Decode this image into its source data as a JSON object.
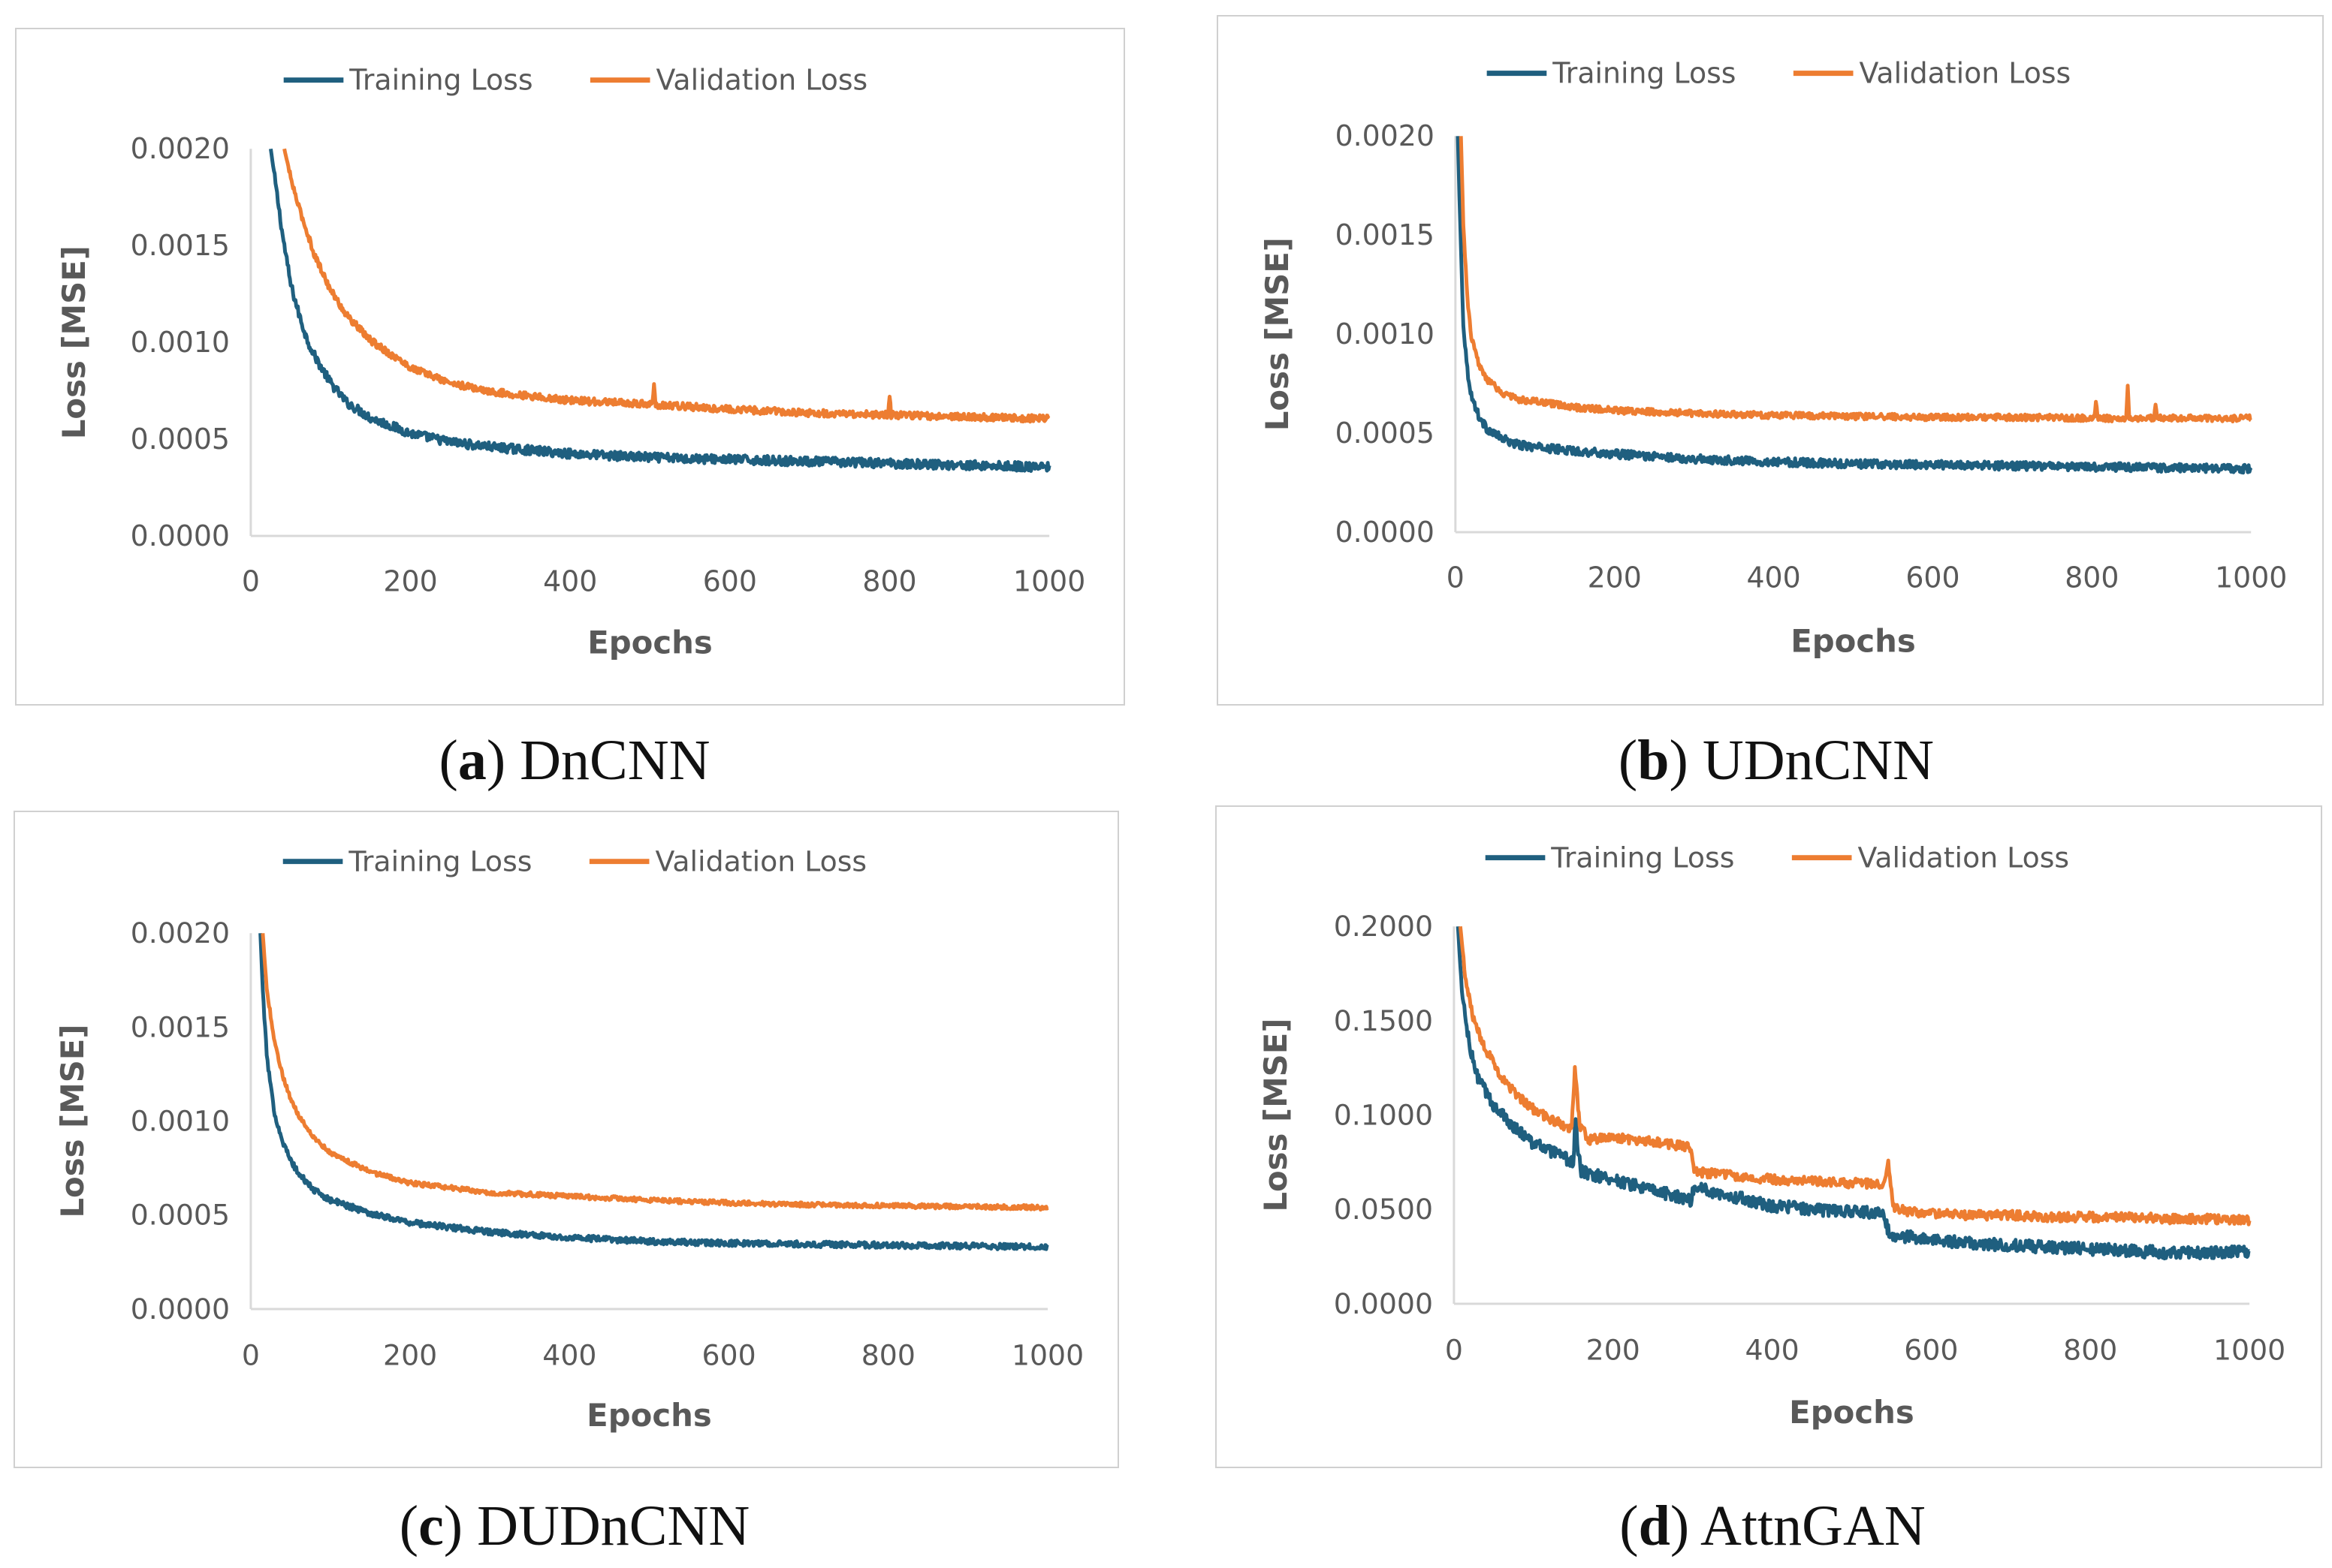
{
  "captions": [
    {
      "letter": "a",
      "name": "DnCNN"
    },
    {
      "letter": "b",
      "name": "UDnCNN"
    },
    {
      "letter": "c",
      "name": "DUDnCNN"
    },
    {
      "letter": "d",
      "name": "AttnGAN"
    }
  ],
  "colors": {
    "training": "#1f5f7f",
    "validation": "#ed7d31",
    "axis": "#d9d9d9",
    "text": "#595959"
  },
  "chart_data": [
    {
      "type": "line",
      "caption": "(a) DnCNN",
      "xlabel": "Epochs",
      "ylabel": "Loss [MSE]",
      "xlim": [
        0,
        1000
      ],
      "ylim": [
        0,
        0.002
      ],
      "xticks": [
        0,
        200,
        400,
        600,
        800,
        1000
      ],
      "xtick_labels": [
        "0",
        "200",
        "400",
        "600",
        "800",
        "1000"
      ],
      "yticks": [
        0,
        0.0005,
        0.001,
        0.0015,
        0.002
      ],
      "ytick_labels": [
        "0.0000",
        "0.0005",
        "0.0010",
        "0.0015",
        "0.0020"
      ],
      "legend_position": "top",
      "grid": false,
      "series": [
        {
          "name": "Training Loss",
          "x": [
            25,
            30,
            40,
            50,
            60,
            70,
            80,
            100,
            120,
            150,
            200,
            250,
            300,
            400,
            500,
            600,
            700,
            800,
            900,
            1000
          ],
          "y": [
            0.002,
            0.00185,
            0.00155,
            0.0013,
            0.00115,
            0.00102,
            0.00093,
            0.00079,
            0.00069,
            0.00061,
            0.00053,
            0.000485,
            0.00046,
            0.000425,
            0.000405,
            0.000395,
            0.000385,
            0.000375,
            0.000365,
            0.000355
          ]
        },
        {
          "name": "Validation Loss",
          "x": [
            42,
            50,
            60,
            80,
            100,
            120,
            150,
            200,
            250,
            300,
            400,
            500,
            600,
            700,
            800,
            900,
            1000
          ],
          "y": [
            0.002,
            0.00185,
            0.0017,
            0.00145,
            0.00127,
            0.00114,
            0.00101,
            0.00087,
            0.00079,
            0.000745,
            0.0007,
            0.00068,
            0.000655,
            0.000635,
            0.000625,
            0.000615,
            0.000605
          ]
        }
      ]
    },
    {
      "type": "line",
      "caption": "(b) UDnCNN",
      "xlabel": "Epochs",
      "ylabel": "Loss [MSE]",
      "xlim": [
        0,
        1000
      ],
      "ylim": [
        0,
        0.002
      ],
      "xticks": [
        0,
        200,
        400,
        600,
        800,
        1000
      ],
      "xtick_labels": [
        "0",
        "200",
        "400",
        "600",
        "800",
        "1000"
      ],
      "yticks": [
        0,
        0.0005,
        0.001,
        0.0015,
        0.002
      ],
      "ytick_labels": [
        "0.0000",
        "0.0005",
        "0.0010",
        "0.0015",
        "0.0020"
      ],
      "legend_position": "top",
      "grid": false,
      "series": [
        {
          "name": "Training Loss",
          "x": [
            3,
            5,
            8,
            10,
            15,
            20,
            30,
            40,
            60,
            80,
            100,
            150,
            200,
            300,
            400,
            500,
            600,
            700,
            800,
            900,
            1000
          ],
          "y": [
            0.002,
            0.0017,
            0.0013,
            0.00105,
            0.00082,
            0.00069,
            0.00058,
            0.00052,
            0.00047,
            0.00044,
            0.00043,
            0.00041,
            0.000395,
            0.00037,
            0.000355,
            0.000345,
            0.00034,
            0.000335,
            0.00033,
            0.000325,
            0.00032
          ]
        },
        {
          "name": "Validation Loss",
          "x": [
            7,
            10,
            15,
            20,
            30,
            40,
            60,
            80,
            100,
            150,
            200,
            300,
            400,
            500,
            600,
            700,
            800,
            900,
            1000
          ],
          "y": [
            0.002,
            0.00155,
            0.00118,
            0.00098,
            0.00084,
            0.00077,
            0.0007,
            0.00067,
            0.00066,
            0.00063,
            0.000615,
            0.0006,
            0.00059,
            0.000585,
            0.00058,
            0.00058,
            0.000575,
            0.000575,
            0.000575
          ]
        }
      ]
    },
    {
      "type": "line",
      "caption": "(c) DUDnCNN",
      "xlabel": "Epochs",
      "ylabel": "Loss [MSE]",
      "xlim": [
        0,
        1000
      ],
      "ylim": [
        0,
        0.002
      ],
      "xticks": [
        0,
        200,
        400,
        600,
        800,
        1000
      ],
      "xtick_labels": [
        "0",
        "200",
        "400",
        "600",
        "800",
        "1000"
      ],
      "yticks": [
        0,
        0.0005,
        0.001,
        0.0015,
        0.002
      ],
      "ytick_labels": [
        "0.0000",
        "0.0005",
        "0.0010",
        "0.0015",
        "0.0020"
      ],
      "legend_position": "top",
      "grid": false,
      "series": [
        {
          "name": "Training Loss",
          "x": [
            12,
            15,
            20,
            25,
            30,
            40,
            50,
            60,
            80,
            100,
            150,
            200,
            300,
            400,
            500,
            600,
            700,
            800,
            900,
            1000
          ],
          "y": [
            0.002,
            0.0017,
            0.00135,
            0.00118,
            0.00104,
            0.00089,
            0.00079,
            0.00072,
            0.00063,
            0.00058,
            0.00051,
            0.00046,
            0.00041,
            0.00038,
            0.00036,
            0.00035,
            0.000345,
            0.00034,
            0.000335,
            0.00033
          ]
        },
        {
          "name": "Validation Loss",
          "x": [
            15,
            20,
            30,
            40,
            50,
            60,
            80,
            100,
            150,
            200,
            300,
            400,
            500,
            600,
            700,
            800,
            900,
            1000
          ],
          "y": [
            0.002,
            0.0017,
            0.00142,
            0.00124,
            0.00112,
            0.00103,
            0.00091,
            0.00083,
            0.00073,
            0.00067,
            0.00062,
            0.0006,
            0.00058,
            0.000565,
            0.000555,
            0.00055,
            0.000545,
            0.00054
          ]
        }
      ]
    },
    {
      "type": "line",
      "caption": "(d) AttnGAN",
      "xlabel": "Epochs",
      "ylabel": "Loss [MSE]",
      "xlim": [
        0,
        1000
      ],
      "ylim": [
        0,
        0.2
      ],
      "xticks": [
        0,
        200,
        400,
        600,
        800,
        1000
      ],
      "xtick_labels": [
        "0",
        "200",
        "400",
        "600",
        "800",
        "1000"
      ],
      "yticks": [
        0,
        0.05,
        0.1,
        0.15,
        0.2
      ],
      "ytick_labels": [
        "0.0000",
        "0.0500",
        "0.1000",
        "0.1500",
        "0.2000"
      ],
      "legend_position": "top",
      "grid": false,
      "series": [
        {
          "name": "Training Loss",
          "x": [
            5,
            10,
            20,
            30,
            50,
            75,
            100,
            125,
            150,
            153,
            156,
            160,
            200,
            250,
            298,
            302,
            350,
            400,
            450,
            500,
            540,
            547,
            560,
            600,
            650,
            700,
            750,
            800,
            850,
            900,
            950,
            1000
          ],
          "y": [
            0.2,
            0.165,
            0.135,
            0.12,
            0.105,
            0.094,
            0.085,
            0.08,
            0.075,
            0.1,
            0.08,
            0.07,
            0.066,
            0.06,
            0.055,
            0.062,
            0.057,
            0.052,
            0.05,
            0.049,
            0.048,
            0.037,
            0.036,
            0.034,
            0.032,
            0.031,
            0.03,
            0.029,
            0.028,
            0.027,
            0.027,
            0.028
          ]
        },
        {
          "name": "Validation Loss",
          "x": [
            8,
            15,
            25,
            40,
            60,
            80,
            100,
            125,
            148,
            152,
            158,
            170,
            200,
            250,
            298,
            302,
            350,
            400,
            450,
            500,
            540,
            546,
            552,
            570,
            600,
            650,
            700,
            750,
            800,
            850,
            900,
            950,
            1000
          ],
          "y": [
            0.2,
            0.17,
            0.15,
            0.135,
            0.12,
            0.11,
            0.103,
            0.097,
            0.093,
            0.125,
            0.095,
            0.087,
            0.088,
            0.086,
            0.083,
            0.07,
            0.068,
            0.066,
            0.065,
            0.064,
            0.063,
            0.075,
            0.051,
            0.049,
            0.048,
            0.047,
            0.047,
            0.046,
            0.046,
            0.046,
            0.045,
            0.045,
            0.044
          ]
        }
      ]
    }
  ]
}
